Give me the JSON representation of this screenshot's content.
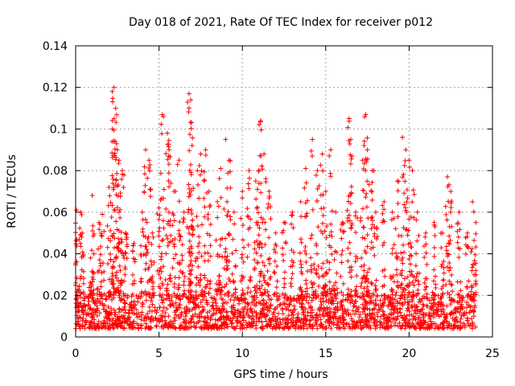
{
  "chart_data": {
    "type": "scatter",
    "title": "Day 018 of 2021, Rate Of TEC Index for receiver p012",
    "xlabel": "GPS time / hours",
    "ylabel": "ROTI / TECUs",
    "xlim": [
      0,
      25
    ],
    "ylim": [
      0,
      0.14
    ],
    "xticks": [
      0,
      5,
      10,
      15,
      20,
      25
    ],
    "xtick_labels": [
      "0",
      "5",
      "10",
      "15",
      "20",
      "25"
    ],
    "yticks": [
      0,
      0.02,
      0.04,
      0.06,
      0.08,
      0.1,
      0.12,
      0.14
    ],
    "ytick_labels": [
      "0",
      "0.02",
      "0.04",
      "0.06",
      "0.08",
      "0.1",
      "0.12",
      "0.14"
    ],
    "grid": true,
    "marker": "plus",
    "color": "#ff0000",
    "time_range_hours": [
      0,
      24
    ],
    "baseline_band": [
      0.004,
      0.02
    ],
    "spikes": [
      {
        "x": 0.05,
        "y": 0.061
      },
      {
        "x": 0.3,
        "y": 0.06
      },
      {
        "x": 0.4,
        "y": 0.05
      },
      {
        "x": 0.9,
        "y": 0.038
      },
      {
        "x": 1.0,
        "y": 0.068
      },
      {
        "x": 1.4,
        "y": 0.055
      },
      {
        "x": 1.6,
        "y": 0.059
      },
      {
        "x": 2.0,
        "y": 0.072
      },
      {
        "x": 2.2,
        "y": 0.1
      },
      {
        "x": 2.3,
        "y": 0.12
      },
      {
        "x": 2.4,
        "y": 0.11
      },
      {
        "x": 2.5,
        "y": 0.09
      },
      {
        "x": 2.6,
        "y": 0.085
      },
      {
        "x": 2.8,
        "y": 0.08
      },
      {
        "x": 3.0,
        "y": 0.05
      },
      {
        "x": 3.5,
        "y": 0.045
      },
      {
        "x": 4.0,
        "y": 0.06
      },
      {
        "x": 4.2,
        "y": 0.09
      },
      {
        "x": 4.4,
        "y": 0.085
      },
      {
        "x": 4.6,
        "y": 0.05
      },
      {
        "x": 5.0,
        "y": 0.062
      },
      {
        "x": 5.2,
        "y": 0.107
      },
      {
        "x": 5.5,
        "y": 0.098
      },
      {
        "x": 5.6,
        "y": 0.09
      },
      {
        "x": 5.9,
        "y": 0.07
      },
      {
        "x": 6.2,
        "y": 0.085
      },
      {
        "x": 6.5,
        "y": 0.06
      },
      {
        "x": 6.8,
        "y": 0.117
      },
      {
        "x": 6.9,
        "y": 0.114
      },
      {
        "x": 6.95,
        "y": 0.103
      },
      {
        "x": 7.3,
        "y": 0.08
      },
      {
        "x": 7.5,
        "y": 0.088
      },
      {
        "x": 7.8,
        "y": 0.09
      },
      {
        "x": 8.0,
        "y": 0.07
      },
      {
        "x": 8.5,
        "y": 0.065
      },
      {
        "x": 8.7,
        "y": 0.081
      },
      {
        "x": 9.0,
        "y": 0.095
      },
      {
        "x": 9.2,
        "y": 0.085
      },
      {
        "x": 9.5,
        "y": 0.06
      },
      {
        "x": 10.0,
        "y": 0.07
      },
      {
        "x": 10.4,
        "y": 0.08
      },
      {
        "x": 10.8,
        "y": 0.075
      },
      {
        "x": 11.0,
        "y": 0.08
      },
      {
        "x": 11.1,
        "y": 0.104
      },
      {
        "x": 11.3,
        "y": 0.088
      },
      {
        "x": 11.6,
        "y": 0.07
      },
      {
        "x": 12.0,
        "y": 0.05
      },
      {
        "x": 12.5,
        "y": 0.055
      },
      {
        "x": 13.0,
        "y": 0.06
      },
      {
        "x": 13.5,
        "y": 0.065
      },
      {
        "x": 13.8,
        "y": 0.081
      },
      {
        "x": 14.2,
        "y": 0.095
      },
      {
        "x": 14.5,
        "y": 0.08
      },
      {
        "x": 14.8,
        "y": 0.088
      },
      {
        "x": 15.0,
        "y": 0.07
      },
      {
        "x": 15.3,
        "y": 0.09
      },
      {
        "x": 15.6,
        "y": 0.06
      },
      {
        "x": 16.0,
        "y": 0.055
      },
      {
        "x": 16.4,
        "y": 0.105
      },
      {
        "x": 16.5,
        "y": 0.095
      },
      {
        "x": 16.8,
        "y": 0.06
      },
      {
        "x": 17.2,
        "y": 0.085
      },
      {
        "x": 17.4,
        "y": 0.107
      },
      {
        "x": 17.5,
        "y": 0.09
      },
      {
        "x": 17.8,
        "y": 0.08
      },
      {
        "x": 18.0,
        "y": 0.06
      },
      {
        "x": 18.5,
        "y": 0.065
      },
      {
        "x": 19.0,
        "y": 0.06
      },
      {
        "x": 19.3,
        "y": 0.075
      },
      {
        "x": 19.6,
        "y": 0.096
      },
      {
        "x": 19.8,
        "y": 0.09
      },
      {
        "x": 20.0,
        "y": 0.085
      },
      {
        "x": 20.2,
        "y": 0.08
      },
      {
        "x": 20.5,
        "y": 0.06
      },
      {
        "x": 21.0,
        "y": 0.05
      },
      {
        "x": 21.5,
        "y": 0.055
      },
      {
        "x": 22.0,
        "y": 0.05
      },
      {
        "x": 22.3,
        "y": 0.077
      },
      {
        "x": 22.5,
        "y": 0.07
      },
      {
        "x": 23.0,
        "y": 0.06
      },
      {
        "x": 23.5,
        "y": 0.05
      },
      {
        "x": 23.8,
        "y": 0.065
      },
      {
        "x": 24.0,
        "y": 0.055
      }
    ]
  }
}
